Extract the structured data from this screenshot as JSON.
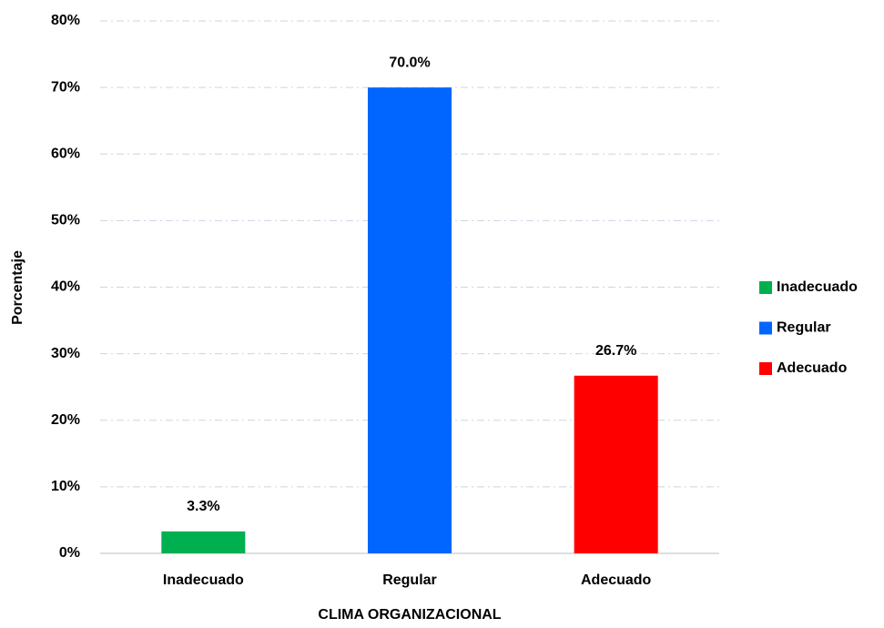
{
  "chart_data": {
    "type": "bar",
    "x_label": "CLIMA ORGANIZACIONAL",
    "y_label": "Porcentaje",
    "categories": [
      "Inadecuado",
      "Regular",
      "Adecuado"
    ],
    "values": [
      3.3,
      70.0,
      26.7
    ],
    "value_labels": [
      "3.3%",
      "70.0%",
      "26.7%"
    ],
    "colors": [
      "#00b050",
      "#0066ff",
      "#ff0000"
    ],
    "ylim": [
      0,
      80
    ],
    "yticks": [
      {
        "value": 0,
        "label": "0%"
      },
      {
        "value": 10,
        "label": "10%"
      },
      {
        "value": 20,
        "label": "20%"
      },
      {
        "value": 30,
        "label": "30%"
      },
      {
        "value": 40,
        "label": "40%"
      },
      {
        "value": 50,
        "label": "50%"
      },
      {
        "value": 60,
        "label": "60%"
      },
      {
        "value": 70,
        "label": "70%"
      },
      {
        "value": 80,
        "label": "80%"
      }
    ],
    "grid": true,
    "legend": "right"
  }
}
